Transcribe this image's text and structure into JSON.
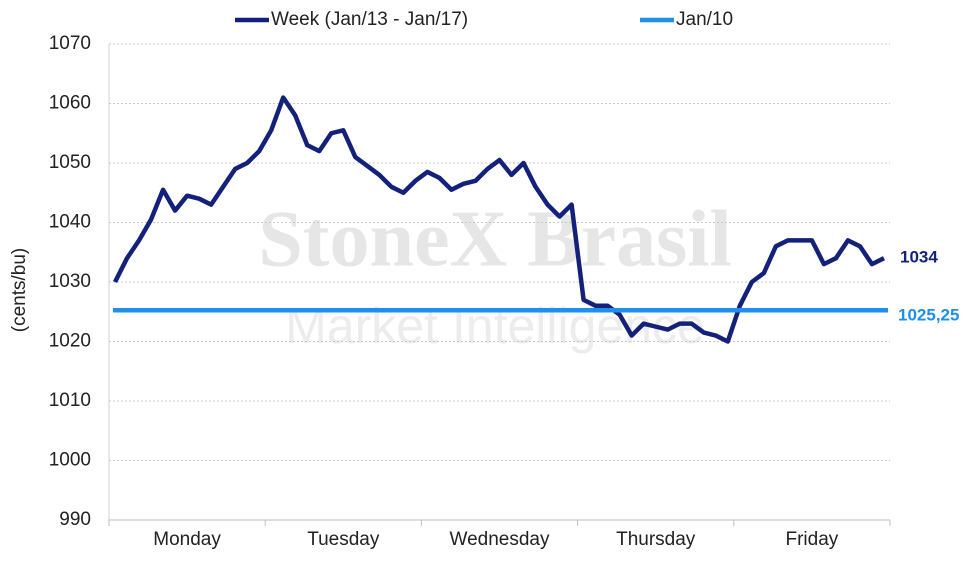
{
  "chart_data": {
    "type": "line",
    "watermark": {
      "line1": "StoneX Brasil",
      "line2": "Market Intelligence"
    },
    "y_label": "(cents/bu)",
    "categories": [
      null,
      null,
      null,
      null,
      null,
      null,
      "Monday",
      null,
      null,
      null,
      null,
      null,
      null,
      null,
      null,
      null,
      null,
      null,
      null,
      "Tuesday",
      null,
      null,
      null,
      null,
      null,
      null,
      null,
      null,
      null,
      null,
      null,
      null,
      "Wednesday",
      null,
      null,
      null,
      null,
      null,
      null,
      null,
      null,
      null,
      null,
      null,
      null,
      "Thursday",
      null,
      null,
      null,
      null,
      null,
      null,
      null,
      null,
      null,
      null,
      null,
      null,
      "Friday",
      null,
      null,
      null,
      null,
      null,
      null
    ],
    "series": [
      {
        "name": "Week (Jan/13 - Jan/17)",
        "color": "#14217a",
        "values": [
          1030,
          1034,
          1037,
          1040.5,
          1045.5,
          1042,
          1044.5,
          1044,
          1043,
          1046,
          1049,
          1050,
          1052,
          1055.5,
          1061,
          1058,
          1053,
          1052,
          1055,
          1055.5,
          1051,
          1049.5,
          1048,
          1046,
          1045,
          1047,
          1048.5,
          1047.5,
          1045.5,
          1046.5,
          1047,
          1049,
          1050.5,
          1048,
          1050,
          1046,
          1043,
          1041,
          1043,
          1027,
          1026,
          1026,
          1024.5,
          1021,
          1023,
          1022.5,
          1022,
          1023,
          1023,
          1021.5,
          1021,
          1020,
          1026,
          1030,
          1031.5,
          1036,
          1037,
          1037,
          1037,
          1033,
          1034,
          1037,
          1036,
          1033,
          1034
        ]
      },
      {
        "name": "Jan/10",
        "color": "#1f8fe8",
        "value": 1025.25,
        "value_label": "1025,25"
      }
    ],
    "ylim": [
      990,
      1070
    ],
    "yticks": [
      990,
      1000,
      1010,
      1020,
      1030,
      1040,
      1050,
      1060,
      1070
    ],
    "grid": true
  }
}
